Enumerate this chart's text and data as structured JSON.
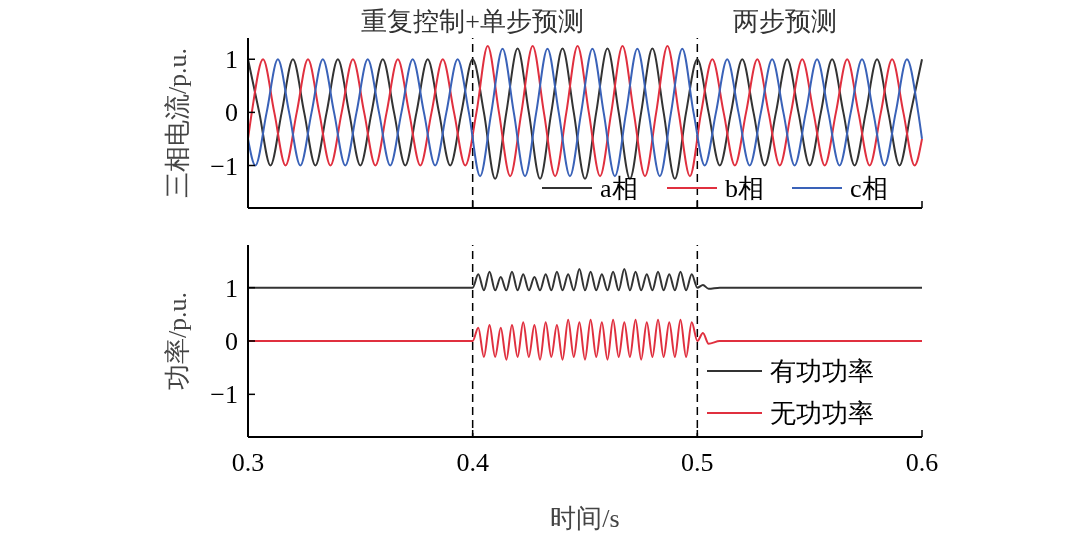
{
  "chart_data": [
    {
      "type": "line",
      "ylabel": "三相电流/p.u.",
      "xlim": [
        0.3,
        0.6
      ],
      "ylim": [
        -1.8,
        1.4
      ],
      "yticks": [
        -1,
        0,
        1
      ],
      "xticks": [
        0.3,
        0.4,
        0.5,
        0.6
      ],
      "tick_labels": "y",
      "grid": false,
      "legend": "bottom right",
      "ref_lines": [
        {
          "axis": "x",
          "value": 0.4,
          "line_style": "dashed",
          "color": "#000000"
        },
        {
          "axis": "x",
          "value": 0.5,
          "line_style": "dashed",
          "color": "#000000"
        }
      ],
      "annotations": [
        "重复控制+单步预测",
        "两步预测"
      ],
      "series": [
        {
          "name": "a相",
          "color": "#333333",
          "x": [
            0.3,
            0.305,
            0.31,
            0.315,
            0.32,
            0.325,
            0.33,
            0.335,
            0.34,
            0.345,
            0.35,
            0.355,
            0.36,
            0.365,
            0.37,
            0.375,
            0.38,
            0.385,
            0.39,
            0.395,
            0.4,
            0.405,
            0.41,
            0.415,
            0.42,
            0.425,
            0.43,
            0.435,
            0.44,
            0.445,
            0.45,
            0.455,
            0.46,
            0.465,
            0.47,
            0.475,
            0.48,
            0.485,
            0.49,
            0.495,
            0.5,
            0.505,
            0.51,
            0.515,
            0.52,
            0.525,
            0.53,
            0.535,
            0.54,
            0.545,
            0.55,
            0.555,
            0.56,
            0.565,
            0.57,
            0.575,
            0.58,
            0.585,
            0.59,
            0.595,
            0.6
          ],
          "values": [
            1,
            0,
            -1,
            0,
            1,
            0,
            -1,
            0,
            1,
            0,
            -1,
            0,
            1,
            0,
            -1,
            0,
            1,
            0,
            -1,
            0,
            1,
            0,
            -1.25,
            0,
            1.2,
            0,
            -1.25,
            0,
            1.2,
            0,
            -1.25,
            0,
            1.2,
            0,
            -1.25,
            0,
            1.2,
            0,
            -1.25,
            0,
            1,
            0,
            -1,
            0,
            1,
            0,
            -1,
            0,
            1,
            0,
            -1,
            0,
            1,
            0,
            -1,
            0,
            1,
            0,
            -1,
            0,
            1
          ]
        },
        {
          "name": "b相",
          "color": "#e0303f",
          "x": [
            0.3,
            0.3017,
            0.3067,
            0.3117,
            0.3167,
            0.3217,
            0.3267,
            0.3317,
            0.3367,
            0.3417,
            0.3467,
            0.3517,
            0.3567,
            0.3617,
            0.3667,
            0.3717,
            0.3767,
            0.3817,
            0.3867,
            0.3917,
            0.3967,
            0.4017,
            0.4067,
            0.4117,
            0.4167,
            0.4217,
            0.4267,
            0.4317,
            0.4367,
            0.4417,
            0.4467,
            0.4517,
            0.4567,
            0.4617,
            0.4667,
            0.4717,
            0.4767,
            0.4817,
            0.4867,
            0.4917,
            0.4967,
            0.5017,
            0.5067,
            0.5117,
            0.5167,
            0.5217,
            0.5267,
            0.5317,
            0.5367,
            0.5417,
            0.5467,
            0.5517,
            0.5567,
            0.5617,
            0.5667,
            0.5717,
            0.5767,
            0.5817,
            0.5867,
            0.5917,
            0.5967,
            0.6
          ],
          "values": [
            -0.5,
            0,
            1,
            0,
            -1,
            0,
            1,
            0,
            -1,
            0,
            1,
            0,
            -1,
            0,
            1,
            0,
            -1,
            0,
            1,
            0,
            -1,
            0,
            1.25,
            0,
            -1.2,
            0,
            1.25,
            0,
            -1.2,
            0,
            1.25,
            0,
            -1.2,
            0,
            1.25,
            0,
            -1.2,
            0,
            1.25,
            0,
            -1.2,
            0,
            1,
            0,
            -1,
            0,
            1,
            0,
            -1,
            0,
            1,
            0,
            -1,
            0,
            1,
            0,
            -1,
            0,
            1,
            0,
            -1,
            -0.5
          ]
        },
        {
          "name": "c相",
          "color": "#3a62b8",
          "x": [
            0.3,
            0.3033,
            0.3083,
            0.3133,
            0.3183,
            0.3233,
            0.3283,
            0.3333,
            0.3383,
            0.3433,
            0.3483,
            0.3533,
            0.3583,
            0.3633,
            0.3683,
            0.3733,
            0.3783,
            0.3833,
            0.3883,
            0.3933,
            0.3983,
            0.4033,
            0.4083,
            0.4133,
            0.4183,
            0.4233,
            0.4283,
            0.4333,
            0.4383,
            0.4433,
            0.4483,
            0.4533,
            0.4583,
            0.4633,
            0.4683,
            0.4733,
            0.4783,
            0.4833,
            0.4883,
            0.4933,
            0.4983,
            0.5033,
            0.5083,
            0.5133,
            0.5183,
            0.5233,
            0.5283,
            0.5333,
            0.5383,
            0.5433,
            0.5483,
            0.5533,
            0.5583,
            0.5633,
            0.5683,
            0.5733,
            0.5783,
            0.5833,
            0.5883,
            0.5933,
            0.5983,
            0.6
          ],
          "values": [
            -0.5,
            -1,
            0,
            1,
            0,
            -1,
            0,
            1,
            0,
            -1,
            0,
            1,
            0,
            -1,
            0,
            1,
            0,
            -1,
            0,
            1,
            0,
            -1.2,
            0,
            1.2,
            0,
            -1.2,
            0,
            1.2,
            0,
            -1.2,
            0,
            1.2,
            0,
            -1.2,
            0,
            1.2,
            0,
            -1.2,
            0,
            1.2,
            0,
            -1,
            0,
            1,
            0,
            -1,
            0,
            1,
            0,
            -1,
            0,
            1,
            0,
            -1,
            0,
            1,
            0,
            -1,
            0,
            1,
            0,
            -0.5
          ]
        }
      ]
    },
    {
      "type": "line",
      "ylabel": "功率/p.u.",
      "xlabel": "时间/s",
      "xlim": [
        0.3,
        0.6
      ],
      "ylim": [
        -1.8,
        1.8
      ],
      "yticks": [
        -1,
        0,
        1
      ],
      "xticks": [
        0.3,
        0.4,
        0.5,
        0.6
      ],
      "grid": false,
      "legend": "bottom right",
      "ref_lines": [
        {
          "axis": "x",
          "value": 0.4,
          "line_style": "dashed",
          "color": "#000000"
        },
        {
          "axis": "x",
          "value": 0.5,
          "line_style": "dashed",
          "color": "#000000"
        }
      ],
      "x": [
        0.3,
        0.32,
        0.34,
        0.36,
        0.38,
        0.4,
        0.4025,
        0.405,
        0.4075,
        0.41,
        0.4125,
        0.415,
        0.4175,
        0.42,
        0.4225,
        0.425,
        0.4275,
        0.43,
        0.4325,
        0.435,
        0.4375,
        0.44,
        0.4425,
        0.445,
        0.4475,
        0.45,
        0.4525,
        0.455,
        0.4575,
        0.46,
        0.4625,
        0.465,
        0.4675,
        0.47,
        0.4725,
        0.475,
        0.4775,
        0.48,
        0.4825,
        0.485,
        0.4875,
        0.49,
        0.4925,
        0.495,
        0.4975,
        0.5,
        0.5025,
        0.505,
        0.51,
        0.52,
        0.54,
        0.56,
        0.58,
        0.6
      ],
      "series": [
        {
          "name": "有功功率",
          "color": "#333333",
          "values": [
            1,
            1,
            1,
            1,
            1,
            1,
            1.25,
            0.95,
            1.3,
            0.95,
            1.2,
            0.95,
            1.3,
            0.95,
            1.25,
            0.95,
            1.2,
            0.95,
            1.25,
            0.95,
            1.3,
            0.95,
            1.25,
            0.95,
            1.35,
            0.95,
            1.3,
            0.95,
            1.25,
            0.95,
            1.3,
            0.95,
            1.35,
            0.95,
            1.3,
            0.95,
            1.25,
            0.95,
            1.3,
            0.95,
            1.25,
            0.95,
            1.3,
            0.95,
            1.25,
            1,
            1.05,
            0.98,
            1,
            1,
            1,
            1,
            1,
            1
          ]
        },
        {
          "name": "无功功率",
          "color": "#e0303f",
          "values": [
            0,
            0,
            0,
            0,
            0,
            0,
            0.25,
            -0.3,
            0.3,
            -0.3,
            0.25,
            -0.35,
            0.3,
            -0.3,
            0.35,
            -0.3,
            0.3,
            -0.35,
            0.35,
            -0.3,
            0.3,
            -0.35,
            0.4,
            -0.3,
            0.35,
            -0.35,
            0.4,
            -0.3,
            0.35,
            -0.35,
            0.4,
            -0.3,
            0.35,
            -0.3,
            0.4,
            -0.35,
            0.35,
            -0.3,
            0.4,
            -0.3,
            0.35,
            -0.3,
            0.4,
            -0.3,
            0.35,
            0,
            0.15,
            -0.05,
            0,
            0,
            0,
            0,
            0,
            0
          ]
        }
      ]
    }
  ]
}
